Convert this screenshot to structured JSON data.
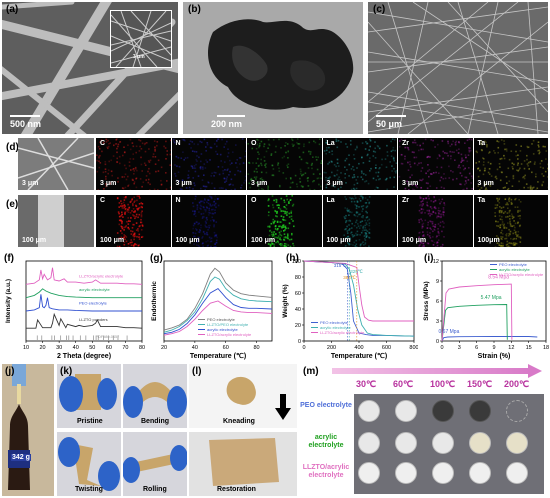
{
  "panels": {
    "a": {
      "label": "(a)",
      "scale_bar": "500 nm",
      "inset_scale_bar": "3 μm"
    },
    "b": {
      "label": "(b)",
      "scale_bar": "200 nm"
    },
    "c": {
      "label": "(c)",
      "scale_bar": "50 μm"
    },
    "d": {
      "label": "(d)",
      "scale_bar": "3 μm",
      "elements": [
        {
          "symbol": "C",
          "scale_bar": "3 μm",
          "color": "#d81e1e"
        },
        {
          "symbol": "N",
          "scale_bar": "3 μm",
          "color": "#2a2ab8"
        },
        {
          "symbol": "O",
          "scale_bar": "3 μm",
          "color": "#2fae2f"
        },
        {
          "symbol": "La",
          "scale_bar": "3 μm",
          "color": "#2aa6a6"
        },
        {
          "symbol": "Zr",
          "scale_bar": "3 μm",
          "color": "#b42ab4"
        },
        {
          "symbol": "Ta",
          "scale_bar": "3 μm",
          "color": "#b4b42a"
        }
      ]
    },
    "e": {
      "label": "(e)",
      "scale_bar": "100 μm",
      "elements": [
        {
          "symbol": "C",
          "scale_bar": "100 μm",
          "color": "#e01010"
        },
        {
          "symbol": "N",
          "scale_bar": "100 μm",
          "color": "#2020c0"
        },
        {
          "symbol": "O",
          "scale_bar": "100 μm",
          "color": "#20d020"
        },
        {
          "symbol": "La",
          "scale_bar": "100 μm",
          "color": "#20b0b0"
        },
        {
          "symbol": "Zr",
          "scale_bar": "100 μm",
          "color": "#c020c0"
        },
        {
          "symbol": "Ta",
          "scale_bar": "100μm",
          "color": "#c0c020"
        }
      ]
    },
    "f": {
      "label": "(f)"
    },
    "g": {
      "label": "(g)"
    },
    "h": {
      "label": "(h)"
    },
    "i": {
      "label": "(i)"
    },
    "j": {
      "label": "(j)",
      "bottle_text": "342 g"
    },
    "k": {
      "label": "(k)",
      "captions": [
        "Pristine",
        "Bending",
        "Twisting",
        "Rolling"
      ]
    },
    "l": {
      "label": "(l)",
      "captions": [
        "Kneading",
        "Restoration"
      ]
    },
    "m": {
      "label": "(m)",
      "temperatures": [
        "30℃",
        "60℃",
        "100℃",
        "150℃",
        "200℃"
      ],
      "rows": [
        {
          "label": "PEO electrolyte",
          "color": "#4f6fd8"
        },
        {
          "label": "acrylic electrolyte",
          "color": "#20a020"
        },
        {
          "label": "LLZTO/acrylic electrolyte",
          "color": "#e070c0"
        }
      ]
    }
  },
  "chart_data": [
    {
      "id": "f",
      "type": "line",
      "xlabel": "2 Theta (degree)",
      "ylabel": "Intensity (a.u.)",
      "xlim": [
        10,
        80
      ],
      "xticks": [
        10,
        20,
        30,
        40,
        50,
        60,
        70,
        80
      ],
      "series": [
        {
          "name": "LLZTO/acrylic electrolyte",
          "color": "#e060c0",
          "offset": 5,
          "x": [
            10,
            15,
            18,
            19,
            20,
            21,
            23,
            25,
            26,
            27,
            30,
            33,
            35,
            40,
            45,
            50,
            52,
            55,
            60,
            65,
            70,
            75,
            80
          ],
          "y": [
            0.1,
            0.2,
            0.5,
            1.4,
            0.6,
            1.0,
            0.5,
            0.7,
            1.6,
            0.5,
            0.4,
            0.6,
            0.3,
            0.3,
            0.2,
            0.3,
            0.5,
            0.2,
            0.2,
            0.2,
            0.15,
            0.15,
            0.1
          ]
        },
        {
          "name": "acrylic electrolyte",
          "color": "#20a060",
          "offset": 3.8,
          "x": [
            10,
            15,
            18,
            20,
            22,
            25,
            30,
            35,
            40,
            50,
            60,
            70,
            80
          ],
          "y": [
            0.1,
            0.3,
            0.6,
            0.9,
            0.7,
            0.5,
            0.3,
            0.2,
            0.15,
            0.1,
            0.1,
            0.1,
            0.1
          ]
        },
        {
          "name": "PEO electrolyte",
          "color": "#3050d0",
          "offset": 2.6,
          "x": [
            10,
            15,
            18,
            19,
            20,
            21,
            22,
            23,
            24,
            26,
            30,
            35,
            40,
            50,
            60,
            70,
            80
          ],
          "y": [
            0.1,
            0.2,
            0.4,
            1.6,
            0.5,
            0.4,
            0.6,
            1.3,
            0.4,
            0.3,
            0.2,
            0.2,
            0.15,
            0.1,
            0.1,
            0.1,
            0.1
          ]
        },
        {
          "name": "LLZTO powders",
          "color": "#333333",
          "offset": 1.1,
          "x": [
            10,
            16,
            17,
            20,
            25,
            26,
            27,
            30,
            31,
            34,
            35,
            40,
            42,
            45,
            50,
            52,
            53,
            55,
            60,
            65,
            70,
            75,
            80
          ],
          "y": [
            0.05,
            0.05,
            0.8,
            0.1,
            0.1,
            0.5,
            1.3,
            0.3,
            0.9,
            0.1,
            0.4,
            0.2,
            0.3,
            0.2,
            0.3,
            0.5,
            0.8,
            0.2,
            0.2,
            0.2,
            0.1,
            0.1,
            0.05
          ]
        }
      ],
      "reference": {
        "name": "PDF#80-0457",
        "color": "#999999",
        "positions": [
          16.8,
          19.5,
          25.6,
          27.2,
          30.9,
          34.4,
          35.8,
          38.4,
          42.8,
          46.1,
          50.8,
          52.3,
          53.6,
          56.8,
          59.8,
          62.7,
          65.5,
          71.0
        ]
      }
    },
    {
      "id": "g",
      "type": "line",
      "xlabel": "Temperature (℃)",
      "ylabel": "Endothermic",
      "xlim": [
        20,
        90
      ],
      "xticks": [
        20,
        40,
        60,
        80
      ],
      "legend": "bottom-right",
      "series": [
        {
          "name": "PEO electrolyte",
          "color": "#808080",
          "x": [
            20,
            25,
            30,
            35,
            40,
            45,
            50,
            53,
            56,
            60,
            65,
            70,
            75,
            80,
            90
          ],
          "y": [
            0.15,
            0.18,
            0.22,
            0.3,
            0.45,
            0.65,
            0.92,
            1.0,
            0.95,
            0.8,
            0.7,
            0.65,
            0.63,
            0.62,
            0.6
          ]
        },
        {
          "name": "LLZTO/PEO electrolyte",
          "color": "#40b0b0",
          "x": [
            20,
            25,
            30,
            35,
            40,
            45,
            50,
            53,
            56,
            60,
            65,
            70,
            75,
            80,
            90
          ],
          "y": [
            0.12,
            0.15,
            0.2,
            0.28,
            0.4,
            0.58,
            0.82,
            0.88,
            0.85,
            0.72,
            0.63,
            0.58,
            0.56,
            0.55,
            0.54
          ]
        },
        {
          "name": "acrylic electrolyte",
          "color": "#3050d0",
          "x": [
            20,
            25,
            30,
            35,
            40,
            45,
            50,
            55,
            60,
            65,
            70,
            75,
            80,
            90
          ],
          "y": [
            0.1,
            0.12,
            0.16,
            0.24,
            0.36,
            0.52,
            0.66,
            0.72,
            0.6,
            0.5,
            0.46,
            0.45,
            0.45,
            0.44
          ]
        },
        {
          "name": "LLZTO/acrylic electrolyte",
          "color": "#e060c0",
          "x": [
            20,
            25,
            30,
            35,
            40,
            45,
            50,
            55,
            60,
            65,
            70,
            75,
            80,
            90
          ],
          "y": [
            0.08,
            0.1,
            0.13,
            0.2,
            0.3,
            0.42,
            0.52,
            0.55,
            0.48,
            0.42,
            0.4,
            0.39,
            0.39,
            0.38
          ]
        }
      ]
    },
    {
      "id": "h",
      "type": "line",
      "xlabel": "Temperature (℃)",
      "ylabel": "Weight (%)",
      "xlim": [
        0,
        800
      ],
      "ylim": [
        0,
        100
      ],
      "xticks": [
        0,
        200,
        400,
        600,
        800
      ],
      "yticks": [
        0,
        20,
        40,
        60,
        80,
        100
      ],
      "legend": "bottom-left",
      "annotations": [
        {
          "text": "315℃",
          "x": 315,
          "color": "#4060d0"
        },
        {
          "text": "329℃",
          "x": 329,
          "color": "#40b0b0"
        },
        {
          "text": "384℃",
          "x": 384,
          "color": "#e09020"
        }
      ],
      "series": [
        {
          "name": "PEO electrolyte",
          "color": "#4060d0",
          "x": [
            0,
            100,
            200,
            280,
            315,
            340,
            360,
            400,
            450,
            500,
            600,
            800
          ],
          "y": [
            100,
            99,
            98,
            96,
            90,
            60,
            25,
            10,
            8,
            7,
            7,
            6
          ]
        },
        {
          "name": "acrylic electrolyte",
          "color": "#40b0b0",
          "x": [
            0,
            100,
            200,
            300,
            329,
            360,
            390,
            420,
            460,
            500,
            600,
            800
          ],
          "y": [
            100,
            99,
            98,
            96,
            90,
            70,
            40,
            20,
            10,
            8,
            7,
            6
          ]
        },
        {
          "name": "LLZTO/acrylic electrolyte",
          "color": "#e060c0",
          "x": [
            0,
            100,
            200,
            300,
            384,
            400,
            420,
            440,
            470,
            500,
            600,
            800
          ],
          "y": [
            100,
            99,
            98,
            97,
            92,
            70,
            45,
            30,
            26,
            25,
            25,
            25
          ]
        }
      ]
    },
    {
      "id": "i",
      "type": "line",
      "xlabel": "Strain (%)",
      "ylabel": "Stress (MPa)",
      "xlim": [
        0,
        18
      ],
      "ylim": [
        0,
        12
      ],
      "xticks": [
        0,
        3,
        6,
        9,
        12,
        15,
        18
      ],
      "yticks": [
        0,
        3,
        6,
        9,
        12
      ],
      "legend": "top-right",
      "annotations": [
        {
          "text": "8.54 Mpa",
          "x": 9.8,
          "y": 9.4,
          "color": "#e060c0"
        },
        {
          "text": "5.47 Mpa",
          "x": 8.5,
          "y": 6.3,
          "color": "#20a060"
        },
        {
          "text": "0.67 Mpa",
          "x": 1.2,
          "y": 1.2,
          "color": "#4060d0"
        }
      ],
      "series": [
        {
          "name": "PEO electrolyte",
          "color": "#4060d0",
          "x": [
            0,
            0.3,
            1,
            3,
            6,
            9,
            12,
            15,
            16.5
          ],
          "y": [
            0,
            0.5,
            0.6,
            0.65,
            0.66,
            0.67,
            0.67,
            0.67,
            0.6
          ]
        },
        {
          "name": "acrylic electrolyte",
          "color": "#20a060",
          "x": [
            0,
            0.6,
            1.0,
            3,
            6,
            9,
            11.2,
            11.3
          ],
          "y": [
            0,
            4.6,
            5.0,
            5.2,
            5.35,
            5.45,
            5.47,
            0.2
          ]
        },
        {
          "name": "LLZTO/acrylic electrolyte",
          "color": "#e060c0",
          "x": [
            0,
            0.7,
            1.2,
            3,
            6,
            9,
            12.0,
            12.1
          ],
          "y": [
            0,
            7.2,
            7.8,
            8.1,
            8.3,
            8.45,
            8.54,
            0.2
          ]
        }
      ]
    }
  ]
}
